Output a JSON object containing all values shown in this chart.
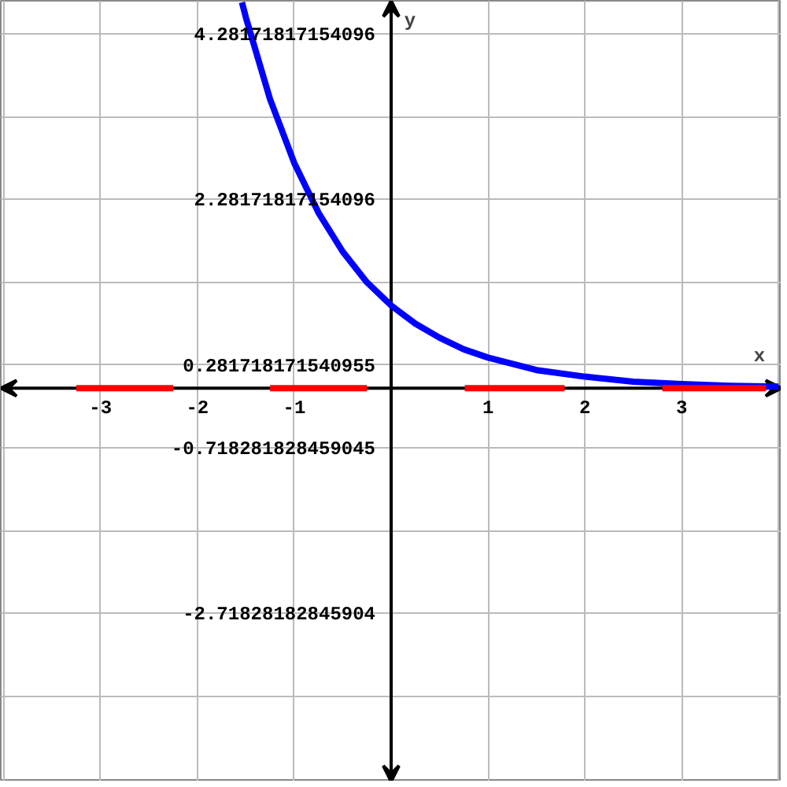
{
  "chart_data": {
    "type": "line",
    "xlabel": "x",
    "ylabel": "y",
    "xlim": [
      -4.03,
      4.03
    ],
    "ylim": [
      -4.75,
      4.68
    ],
    "xticks": [
      {
        "value": -4,
        "label": null
      },
      -3,
      -2,
      -1,
      {
        "value": 1,
        "label": "1"
      },
      2,
      3,
      {
        "value": 4,
        "label": null
      }
    ],
    "yticks": [
      {
        "value": -3.718281828459045,
        "label": null
      },
      {
        "value": -2.71828182845904,
        "label": "-2.71828182845904"
      },
      {
        "value": -1.718281828459045,
        "label": null
      },
      {
        "value": -0.718281828459045,
        "label": "-0.718281828459045"
      },
      {
        "value": 0.281718171540955,
        "label": "0.281718171540955"
      },
      {
        "value": 1.28171817154096,
        "label": null
      },
      {
        "value": 2.28171817154096,
        "label": "2.28171817154096"
      },
      {
        "value": 3.28171817154096,
        "label": null
      },
      {
        "value": 4.28171817154096,
        "label": "4.28171817154096"
      }
    ],
    "grid": true,
    "line_style": "solid",
    "series": [
      {
        "color": "#0000ff",
        "x": [
          -1.54,
          -1.5,
          -1.25,
          -1,
          -0.75,
          -0.5,
          -0.25,
          0,
          0.25,
          0.5,
          0.75,
          1,
          1.5,
          2,
          2.5,
          3,
          3.5,
          4
        ],
        "values": [
          4.66,
          4.48,
          3.49,
          2.72,
          2.12,
          1.65,
          1.28,
          1,
          0.78,
          0.61,
          0.47,
          0.37,
          0.22,
          0.14,
          0.08,
          0.05,
          0.03,
          0.02
        ]
      },
      {
        "color": "#ff0000",
        "x": [
          -3.25,
          -2.25,
          -1.75,
          -1.25,
          -0.25,
          0.25,
          0.76,
          1.79,
          2.3,
          2.8,
          3.87
        ],
        "values": [
          0,
          0,
          null,
          0,
          0,
          null,
          0,
          0,
          null,
          0,
          0
        ]
      }
    ]
  }
}
